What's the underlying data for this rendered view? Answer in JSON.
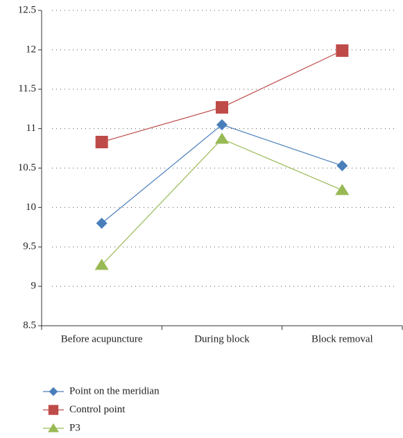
{
  "chart_data": {
    "type": "line",
    "categories": [
      "Before acupuncture",
      "During block",
      "Block removal"
    ],
    "series": [
      {
        "name": "Point on the meridian",
        "color": "#4a7ebb",
        "marker": "diamond",
        "values": [
          9.8,
          11.05,
          10.53
        ]
      },
      {
        "name": "Control point",
        "color": "#be4b48",
        "marker": "square",
        "values": [
          10.83,
          11.27,
          11.99
        ]
      },
      {
        "name": "P3",
        "color": "#98b954",
        "marker": "triangle",
        "values": [
          9.27,
          10.87,
          10.22
        ]
      }
    ],
    "ylim": [
      8.5,
      12.5
    ],
    "yticks": [
      8.5,
      9,
      9.5,
      10,
      10.5,
      11,
      11.5,
      12,
      12.5
    ],
    "grid": true,
    "legend": "bottom-left"
  }
}
